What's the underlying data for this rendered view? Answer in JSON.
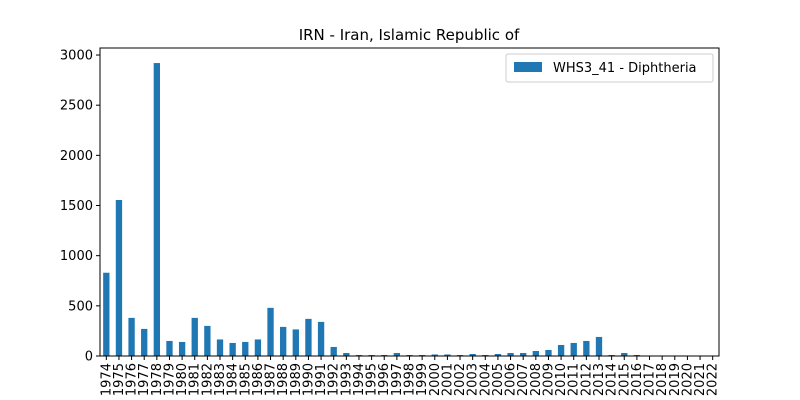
{
  "chart_data": {
    "type": "bar",
    "title": "IRN - Iran, Islamic Republic of",
    "xlabel": "",
    "ylabel": "",
    "ylim": [
      0,
      3070
    ],
    "yticks": [
      0,
      500,
      1000,
      1500,
      2000,
      2500,
      3000
    ],
    "grid": false,
    "legend_position": "top-right",
    "colors": {
      "bar": "#1f77b4"
    },
    "categories": [
      "1974",
      "1975",
      "1976",
      "1977",
      "1978",
      "1979",
      "1980",
      "1981",
      "1982",
      "1983",
      "1984",
      "1985",
      "1986",
      "1987",
      "1988",
      "1989",
      "1990",
      "1991",
      "1992",
      "1993",
      "1994",
      "1995",
      "1996",
      "1997",
      "1998",
      "1999",
      "2000",
      "2001",
      "2002",
      "2003",
      "2004",
      "2005",
      "2006",
      "2007",
      "2008",
      "2009",
      "2010",
      "2011",
      "2012",
      "2013",
      "2014",
      "2015",
      "2016",
      "2017",
      "2018",
      "2019",
      "2020",
      "2021",
      "2022"
    ],
    "series": [
      {
        "name": "WHS3_41 - Diphtheria",
        "values": [
          830,
          1555,
          380,
          270,
          2920,
          150,
          140,
          380,
          300,
          165,
          130,
          140,
          165,
          480,
          290,
          265,
          370,
          340,
          90,
          30,
          10,
          10,
          10,
          30,
          10,
          10,
          15,
          15,
          10,
          20,
          10,
          20,
          30,
          30,
          50,
          60,
          110,
          130,
          150,
          190,
          10,
          30,
          10,
          5,
          0,
          0,
          0,
          0,
          0
        ]
      }
    ]
  }
}
